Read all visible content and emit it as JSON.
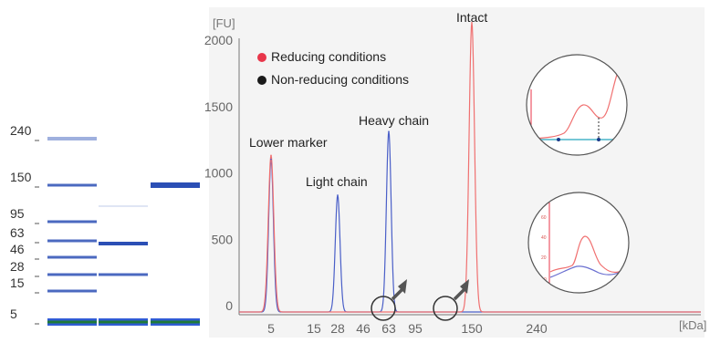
{
  "chart_data": [
    {
      "type": "gel",
      "ladder_labels": [
        "240",
        "150",
        "95",
        "63",
        "46",
        "28",
        "15",
        "5"
      ],
      "lanes": [
        {
          "bands": [
            240,
            150,
            95,
            63,
            46,
            28,
            15,
            5
          ]
        },
        {
          "bands": [
            108,
            58,
            28,
            5
          ]
        },
        {
          "bands": [
            150,
            5
          ]
        }
      ],
      "band_color": "#2b4fb5",
      "marker_color": "#1f7a3a"
    },
    {
      "type": "line",
      "ylabel": "[FU]",
      "xlabel": "[kDa]",
      "y_ticks": [
        0,
        500,
        1000,
        1500,
        2000
      ],
      "x_ticks": [
        "5",
        "15",
        "28",
        "46",
        "63",
        "95",
        "150",
        "240"
      ],
      "ylim": [
        -50,
        2200
      ],
      "grid": false,
      "legend_position": "top-left",
      "legend": [
        {
          "label": "Reducing conditions",
          "color": "#e8364a"
        },
        {
          "label": "Non-reducing conditions",
          "color": "#1a1a1a"
        }
      ],
      "annotations": [
        {
          "text": "Lower marker"
        },
        {
          "text": "Light chain"
        },
        {
          "text": "Heavy chain"
        },
        {
          "text": "Intact"
        }
      ],
      "series": [
        {
          "color": "#f07070",
          "peaks": [
            {
              "x": "5",
              "height": 1180
            },
            {
              "x": "150",
              "height": 2180
            }
          ]
        },
        {
          "color": "#4a5fc8",
          "peaks": [
            {
              "x": "5",
              "height": 1150
            },
            {
              "x": "28",
              "height": 880
            },
            {
              "x": "63",
              "height": 1360
            }
          ]
        }
      ]
    }
  ]
}
